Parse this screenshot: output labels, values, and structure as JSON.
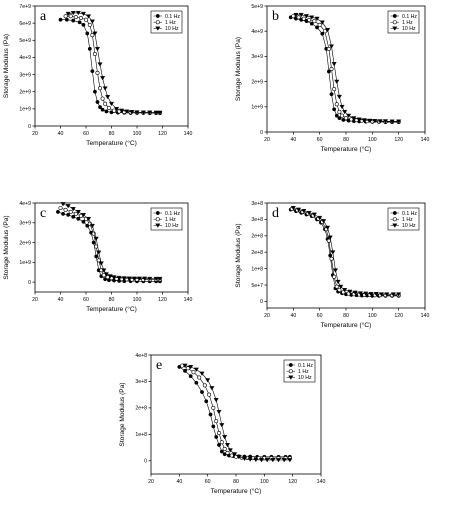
{
  "chart_data": [
    {
      "type": "scatter",
      "panel": "a",
      "xlabel": "Temperature (°C)",
      "ylabel": "Storage Modulus (Pa)",
      "xlim": [
        20,
        140
      ],
      "ylim": [
        0,
        7000000000.0
      ],
      "xticks": [
        "20",
        "40",
        "60",
        "80",
        "100",
        "120",
        "140"
      ],
      "yticks": [
        "0",
        "1e+9",
        "2e+9",
        "3e+9",
        "4e+9",
        "5e+9",
        "6e+9",
        "7e+9"
      ],
      "legend": "top-right",
      "series": [
        {
          "name": "0.1 Hz",
          "marker": "filled-circle",
          "x": [
            40,
            45,
            50,
            55,
            58,
            61,
            63,
            65,
            67,
            69,
            71,
            73,
            76,
            80,
            85,
            90,
            95,
            100,
            105,
            110,
            115,
            118
          ],
          "y": [
            6200000000.0,
            6200000000.0,
            6150000000.0,
            6050000000.0,
            5900000000.0,
            5400000000.0,
            4500000000.0,
            3200000000.0,
            2000000000.0,
            1400000000.0,
            1100000000.0,
            950000000.0,
            850000000.0,
            800000000.0,
            780000000.0,
            770000000.0,
            760000000.0,
            760000000.0,
            760000000.0,
            750000000.0,
            750000000.0,
            750000000.0
          ]
        },
        {
          "name": "1 Hz",
          "marker": "open-circle",
          "x": [
            44,
            48,
            52,
            56,
            60,
            63,
            65,
            67,
            69,
            71,
            73,
            75,
            78,
            82,
            86,
            90,
            95,
            100,
            105,
            110,
            115,
            118
          ],
          "y": [
            6400000000.0,
            6400000000.0,
            6350000000.0,
            6300000000.0,
            6200000000.0,
            5900000000.0,
            5300000000.0,
            4200000000.0,
            3100000000.0,
            2200000000.0,
            1600000000.0,
            1300000000.0,
            1050000000.0,
            900000000.0,
            850000000.0,
            820000000.0,
            800000000.0,
            790000000.0,
            780000000.0,
            780000000.0,
            770000000.0,
            770000000.0
          ]
        },
        {
          "name": "10 Hz",
          "marker": "filled-triangle-down",
          "x": [
            46,
            50,
            54,
            58,
            62,
            65,
            67,
            69,
            71,
            73,
            75,
            77,
            80,
            84,
            88,
            92,
            96,
            100,
            105,
            110,
            115,
            118
          ],
          "y": [
            6550000000.0,
            6600000000.0,
            6600000000.0,
            6550000000.0,
            6400000000.0,
            6100000000.0,
            5400000000.0,
            4500000000.0,
            3600000000.0,
            2800000000.0,
            2200000000.0,
            1700000000.0,
            1300000000.0,
            1000000000.0,
            900000000.0,
            850000000.0,
            820000000.0,
            800000000.0,
            790000000.0,
            790000000.0,
            780000000.0,
            780000000.0
          ]
        }
      ]
    },
    {
      "type": "scatter",
      "panel": "b",
      "xlabel": "Temperature (°C)",
      "ylabel": "Storage Modulus (Pa)",
      "xlim": [
        20,
        140
      ],
      "ylim": [
        0,
        5000000000.0
      ],
      "xticks": [
        "20",
        "40",
        "60",
        "80",
        "100",
        "120",
        "140"
      ],
      "yticks": [
        "0",
        "1e+9",
        "2e+9",
        "3e+9",
        "4e+9",
        "5e+9"
      ],
      "legend": "top-right",
      "series": [
        {
          "name": "0.1 Hz",
          "marker": "filled-circle",
          "x": [
            38,
            42,
            46,
            50,
            54,
            58,
            62,
            65,
            67,
            69,
            71,
            73,
            75,
            78,
            82,
            86,
            90,
            95,
            100,
            105,
            110,
            115,
            120
          ],
          "y": [
            4550000000.0,
            4500000000.0,
            4450000000.0,
            4400000000.0,
            4300000000.0,
            4150000000.0,
            3900000000.0,
            3300000000.0,
            2400000000.0,
            1500000000.0,
            900000000.0,
            650000000.0,
            550000000.0,
            480000000.0,
            450000000.0,
            430000000.0,
            420000000.0,
            410000000.0,
            400000000.0,
            400000000.0,
            390000000.0,
            390000000.0,
            390000000.0
          ]
        },
        {
          "name": "1 Hz",
          "marker": "open-circle",
          "x": [
            40,
            44,
            48,
            52,
            56,
            60,
            64,
            67,
            69,
            71,
            73,
            75,
            77,
            80,
            84,
            88,
            92,
            96,
            100,
            105,
            110,
            115,
            120
          ],
          "y": [
            4600000000.0,
            4550000000.0,
            4500000000.0,
            4450000000.0,
            4400000000.0,
            4250000000.0,
            4000000000.0,
            3300000000.0,
            2500000000.0,
            1700000000.0,
            1100000000.0,
            800000000.0,
            650000000.0,
            550000000.0,
            500000000.0,
            470000000.0,
            450000000.0,
            430000000.0,
            420000000.0,
            420000000.0,
            410000000.0,
            410000000.0,
            410000000.0
          ]
        },
        {
          "name": "10 Hz",
          "marker": "filled-triangle-down",
          "x": [
            42,
            46,
            50,
            54,
            58,
            62,
            66,
            69,
            71,
            73,
            75,
            77,
            79,
            82,
            86,
            90,
            94,
            98,
            102,
            106,
            110,
            115,
            120
          ],
          "y": [
            4650000000.0,
            4650000000.0,
            4600000000.0,
            4550000000.0,
            4500000000.0,
            4350000000.0,
            4050000000.0,
            3400000000.0,
            2700000000.0,
            2000000000.0,
            1400000000.0,
            1000000000.0,
            800000000.0,
            650000000.0,
            550000000.0,
            500000000.0,
            470000000.0,
            450000000.0,
            440000000.0,
            430000000.0,
            430000000.0,
            420000000.0,
            420000000.0
          ]
        }
      ]
    },
    {
      "type": "scatter",
      "panel": "c",
      "xlabel": "Temperature (°C)",
      "ylabel": "Storage Modulus (Pa)",
      "xlim": [
        20,
        140
      ],
      "ylim": [
        -500000000.0,
        4000000000.0
      ],
      "xticks": [
        "20",
        "40",
        "60",
        "80",
        "100",
        "120",
        "140"
      ],
      "yticks": [
        "0",
        "1e+9",
        "2e+9",
        "3e+9",
        "4e+9"
      ],
      "legend": "top-right",
      "series": [
        {
          "name": "0.1 Hz",
          "marker": "filled-circle",
          "x": [
            38,
            42,
            46,
            50,
            54,
            58,
            61,
            64,
            66,
            68,
            70,
            72,
            75,
            78,
            82,
            86,
            90,
            95,
            100,
            105,
            110,
            115,
            118
          ],
          "y": [
            3550000000.0,
            3450000000.0,
            3400000000.0,
            3300000000.0,
            3200000000.0,
            3050000000.0,
            2850000000.0,
            2500000000.0,
            2000000000.0,
            1300000000.0,
            600000000.0,
            300000000.0,
            150000000.0,
            100000000.0,
            80000000.0,
            60000000.0,
            50000000.0,
            50000000.0,
            40000000.0,
            40000000.0,
            40000000.0,
            40000000.0,
            40000000.0
          ]
        },
        {
          "name": "1 Hz",
          "marker": "open-circle",
          "x": [
            40,
            44,
            48,
            52,
            56,
            60,
            63,
            66,
            68,
            70,
            72,
            74,
            77,
            80,
            84,
            88,
            92,
            96,
            100,
            105,
            110,
            115,
            118
          ],
          "y": [
            3750000000.0,
            3650000000.0,
            3550000000.0,
            3450000000.0,
            3350000000.0,
            3200000000.0,
            2950000000.0,
            2450000000.0,
            1800000000.0,
            1100000000.0,
            600000000.0,
            350000000.0,
            250000000.0,
            200000000.0,
            170000000.0,
            150000000.0,
            140000000.0,
            130000000.0,
            130000000.0,
            120000000.0,
            120000000.0,
            120000000.0,
            120000000.0
          ]
        },
        {
          "name": "10 Hz",
          "marker": "filled-triangle-down",
          "x": [
            42,
            46,
            50,
            54,
            58,
            62,
            65,
            68,
            70,
            72,
            74,
            76,
            79,
            82,
            86,
            90,
            94,
            98,
            102,
            106,
            110,
            115,
            118
          ],
          "y": [
            3950000000.0,
            3850000000.0,
            3700000000.0,
            3550000000.0,
            3400000000.0,
            3200000000.0,
            2850000000.0,
            2200000000.0,
            1500000000.0,
            950000000.0,
            600000000.0,
            400000000.0,
            300000000.0,
            250000000.0,
            220000000.0,
            200000000.0,
            190000000.0,
            180000000.0,
            180000000.0,
            180000000.0,
            170000000.0,
            170000000.0,
            170000000.0
          ]
        }
      ]
    },
    {
      "type": "scatter",
      "panel": "d",
      "xlabel": "Temperature (°C)",
      "ylabel": "Storage Modulus (Pa)",
      "xlim": [
        20,
        140
      ],
      "ylim": [
        -20000000.0,
        300000000.0
      ],
      "xticks": [
        "20",
        "40",
        "60",
        "80",
        "100",
        "120",
        "140"
      ],
      "yticks": [
        "0",
        "5e+7",
        "1e+8",
        "2e+8",
        "2e+8",
        "3e+8",
        "3e+8"
      ],
      "legend": "top-right",
      "series": [
        {
          "name": "0.1 Hz",
          "marker": "filled-circle",
          "x": [
            38,
            42,
            46,
            50,
            54,
            58,
            61,
            64,
            66,
            68,
            70,
            72,
            74,
            77,
            80,
            84,
            88,
            92,
            96,
            100,
            105,
            110,
            115,
            120
          ],
          "y": [
            280000000.0,
            275000000.0,
            270000000.0,
            265000000.0,
            260000000.0,
            250000000.0,
            240000000.0,
            220000000.0,
            190000000.0,
            140000000.0,
            80000000.0,
            40000000.0,
            30000000.0,
            25000000.0,
            22000000.0,
            20000000.0,
            19000000.0,
            18000000.0,
            18000000.0,
            17000000.0,
            17000000.0,
            17000000.0,
            17000000.0,
            17000000.0
          ]
        },
        {
          "name": "1 Hz",
          "marker": "open-circle",
          "x": [
            39,
            43,
            47,
            51,
            55,
            59,
            62,
            65,
            67,
            69,
            71,
            73,
            75,
            78,
            82,
            86,
            90,
            94,
            98,
            102,
            106,
            110,
            115,
            120
          ],
          "y": [
            282000000.0,
            278000000.0,
            273000000.0,
            268000000.0,
            262000000.0,
            252000000.0,
            242000000.0,
            220000000.0,
            185000000.0,
            130000000.0,
            75000000.0,
            45000000.0,
            35000000.0,
            28000000.0,
            24000000.0,
            22000000.0,
            21000000.0,
            20000000.0,
            20000000.0,
            19000000.0,
            19000000.0,
            19000000.0,
            19000000.0,
            19000000.0
          ]
        },
        {
          "name": "10 Hz",
          "marker": "filled-triangle-down",
          "x": [
            40,
            44,
            48,
            52,
            56,
            60,
            63,
            66,
            68,
            70,
            72,
            74,
            76,
            79,
            83,
            87,
            91,
            95,
            99,
            103,
            107,
            111,
            116,
            120
          ],
          "y": [
            285000000.0,
            280000000.0,
            276000000.0,
            270000000.0,
            265000000.0,
            255000000.0,
            245000000.0,
            225000000.0,
            195000000.0,
            150000000.0,
            95000000.0,
            60000000.0,
            45000000.0,
            35000000.0,
            30000000.0,
            27000000.0,
            25000000.0,
            24000000.0,
            23000000.0,
            23000000.0,
            22000000.0,
            22000000.0,
            22000000.0,
            22000000.0
          ]
        }
      ]
    },
    {
      "type": "scatter",
      "panel": "e",
      "xlabel": "Temperature (°C)",
      "ylabel": "Storage Modulus (Pa)",
      "xlim": [
        20,
        140
      ],
      "ylim": [
        -50000000.0,
        400000000.0
      ],
      "xticks": [
        "20",
        "40",
        "60",
        "80",
        "100",
        "120",
        "140"
      ],
      "yticks": [
        "0",
        "1e+8",
        "2e+8",
        "3e+8",
        "4e+8"
      ],
      "legend": "top-right",
      "series": [
        {
          "name": "0.1 Hz",
          "marker": "filled-circle",
          "x": [
            40,
            44,
            48,
            52,
            56,
            59,
            62,
            64,
            66,
            68,
            70,
            72,
            75,
            78,
            82,
            86,
            90,
            95,
            100,
            105,
            110,
            115,
            118
          ],
          "y": [
            355000000.0,
            340000000.0,
            320000000.0,
            295000000.0,
            260000000.0,
            225000000.0,
            175000000.0,
            130000000.0,
            90000000.0,
            60000000.0,
            35000000.0,
            25000000.0,
            20000000.0,
            18000000.0,
            17000000.0,
            16000000.0,
            16000000.0,
            15000000.0,
            15000000.0,
            15000000.0,
            15000000.0,
            15000000.0,
            15000000.0
          ]
        },
        {
          "name": "1 Hz",
          "marker": "open-circle",
          "x": [
            42,
            46,
            50,
            54,
            58,
            61,
            64,
            66,
            68,
            70,
            72,
            74,
            77,
            80,
            84,
            88,
            92,
            96,
            100,
            105,
            110,
            115,
            118
          ],
          "y": [
            360000000.0,
            350000000.0,
            335000000.0,
            315000000.0,
            285000000.0,
            250000000.0,
            200000000.0,
            150000000.0,
            105000000.0,
            70000000.0,
            45000000.0,
            30000000.0,
            20000000.0,
            15000000.0,
            12000000.0,
            11000000.0,
            10000000.0,
            10000000.0,
            10000000.0,
            10000000.0,
            10000000.0,
            10000000.0,
            10000000.0
          ]
        },
        {
          "name": "10 Hz",
          "marker": "filled-triangle-down",
          "x": [
            44,
            48,
            52,
            56,
            60,
            63,
            66,
            68,
            70,
            72,
            74,
            76,
            79,
            82,
            86,
            90,
            94,
            98,
            102,
            106,
            110,
            114,
            118
          ],
          "y": [
            360000000.0,
            355000000.0,
            345000000.0,
            330000000.0,
            305000000.0,
            275000000.0,
            230000000.0,
            185000000.0,
            135000000.0,
            90000000.0,
            60000000.0,
            40000000.0,
            25000000.0,
            15000000.0,
            8000000.0,
            5000000.0,
            4000000.0,
            3000000.0,
            3000000.0,
            3000000.0,
            3000000.0,
            3000000.0,
            3000000.0
          ]
        }
      ]
    }
  ]
}
